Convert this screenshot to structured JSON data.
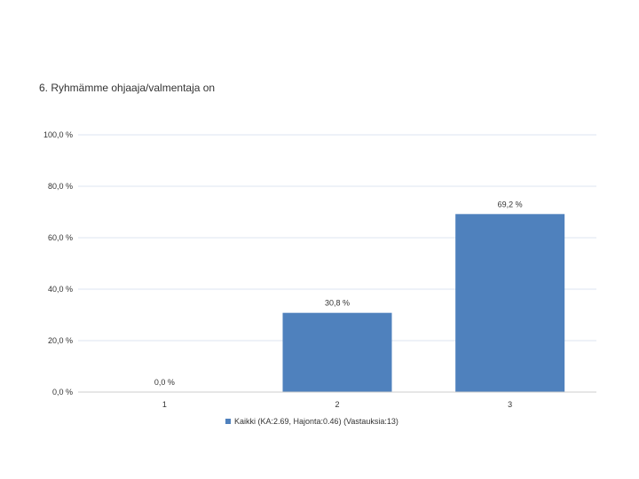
{
  "chart_data": {
    "type": "bar",
    "title": "6. Ryhmämme ohjaaja/valmentaja on",
    "xlabel": "",
    "ylabel": "",
    "categories": [
      "1",
      "2",
      "3"
    ],
    "series": [
      {
        "name": "Kaikki (KA:2.69, Hajonta:0.46) (Vastauksia:13)",
        "values": [
          0.0,
          30.8,
          69.2
        ],
        "value_labels": [
          "0,0 %",
          "30,8 %",
          "69,2 %"
        ],
        "color": "#4f81bd"
      }
    ],
    "ylim": [
      0,
      100
    ],
    "y_ticks": [
      0,
      20,
      40,
      60,
      80,
      100
    ],
    "y_tick_labels": [
      "0,0 %",
      "20,0 %",
      "40,0 %",
      "60,0 %",
      "80,0 %",
      "100,0 %"
    ],
    "grid": true,
    "legend_position": "bottom"
  }
}
